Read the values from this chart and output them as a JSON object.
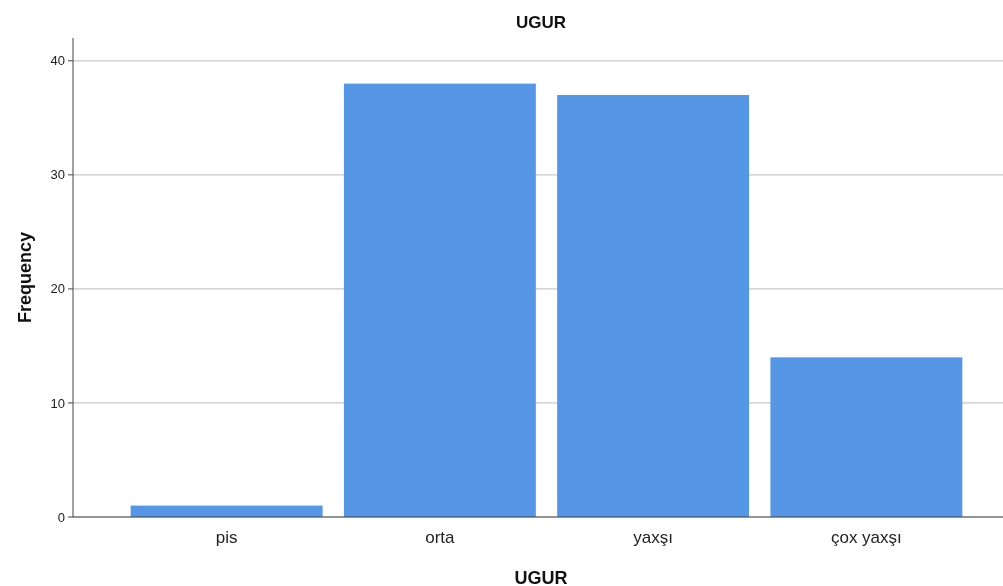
{
  "chart_data": {
    "type": "bar",
    "title": "UGUR",
    "xlabel": "UGUR",
    "ylabel": "Frequency",
    "categories": [
      "pis",
      "orta",
      "yaxşı",
      "çox yaxşı"
    ],
    "values": [
      1,
      38,
      37,
      14
    ],
    "color": "#5596e6",
    "ylim": [
      0,
      42
    ],
    "yticks": [
      0,
      10,
      20,
      30,
      40
    ],
    "grid": "y"
  }
}
